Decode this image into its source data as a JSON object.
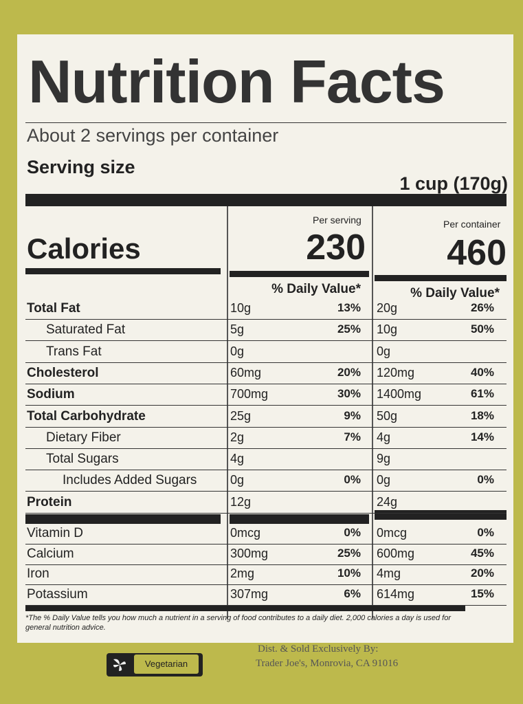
{
  "label": {
    "title": "Nutrition Facts",
    "servings": "About 2 servings per container",
    "serving_size_label": "Serving size",
    "serving_size": "1 cup (170g)",
    "columns": [
      "Per serving",
      "Per container"
    ],
    "calories_label": "Calories",
    "calories": [
      "230",
      "460"
    ],
    "dv_header": "% Daily Value*",
    "nutrients": [
      {
        "name": "Total Fat",
        "serving": {
          "amount": "10g",
          "dv": "13%"
        },
        "container": {
          "amount": "20g",
          "dv": "26%"
        }
      },
      {
        "name": "Saturated Fat",
        "serving": {
          "amount": "5g",
          "dv": "25%"
        },
        "container": {
          "amount": "10g",
          "dv": "50%"
        }
      },
      {
        "name": "Trans Fat",
        "serving": {
          "amount": "0g"
        },
        "container": {
          "amount": "0g"
        }
      },
      {
        "name": "Cholesterol",
        "serving": {
          "amount": "60mg",
          "dv": "20%"
        },
        "container": {
          "amount": "120mg",
          "dv": "40%"
        }
      },
      {
        "name": "Sodium",
        "serving": {
          "amount": "700mg",
          "dv": "30%"
        },
        "container": {
          "amount": "1400mg",
          "dv": "61%"
        }
      },
      {
        "name": "Total Carbohydrate",
        "serving": {
          "amount": "25g",
          "dv": "9%"
        },
        "container": {
          "amount": "50g",
          "dv": "18%"
        }
      },
      {
        "name": "Dietary Fiber",
        "serving": {
          "amount": "2g",
          "dv": "7%"
        },
        "container": {
          "amount": "4g",
          "dv": "14%"
        }
      },
      {
        "name": "Total Sugars",
        "serving": {
          "amount": "4g"
        },
        "container": {
          "amount": "9g"
        }
      },
      {
        "name": "Includes Added Sugars",
        "serving": {
          "amount": "0g",
          "dv": "0%"
        },
        "container": {
          "amount": "0g",
          "dv": "0%"
        }
      },
      {
        "name": "Protein",
        "serving": {
          "amount": "12g"
        },
        "container": {
          "amount": "24g"
        }
      }
    ],
    "vitamins": [
      {
        "name": "Vitamin D",
        "serving": {
          "amount": "0mcg",
          "dv": "0%"
        },
        "container": {
          "amount": "0mcg",
          "dv": "0%"
        }
      },
      {
        "name": "Calcium",
        "serving": {
          "amount": "300mg",
          "dv": "25%"
        },
        "container": {
          "amount": "600mg",
          "dv": "45%"
        }
      },
      {
        "name": "Iron",
        "serving": {
          "amount": "2mg",
          "dv": "10%"
        },
        "container": {
          "amount": "4mg",
          "dv": "20%"
        }
      },
      {
        "name": "Potassium",
        "serving": {
          "amount": "307mg",
          "dv": "6%"
        },
        "container": {
          "amount": "614mg",
          "dv": "15%"
        }
      }
    ],
    "footnote": "*The % Daily Value tells you how much a nutrient in a serving of food contributes to a daily diet. 2,000 calories a day is used for general nutrition advice."
  },
  "package": {
    "badge": "Vegetarian",
    "distributor_line1": "Dist. & Sold Exclusively By:",
    "distributor_line2": "Trader Joe's, Monrovia, CA 91016"
  }
}
